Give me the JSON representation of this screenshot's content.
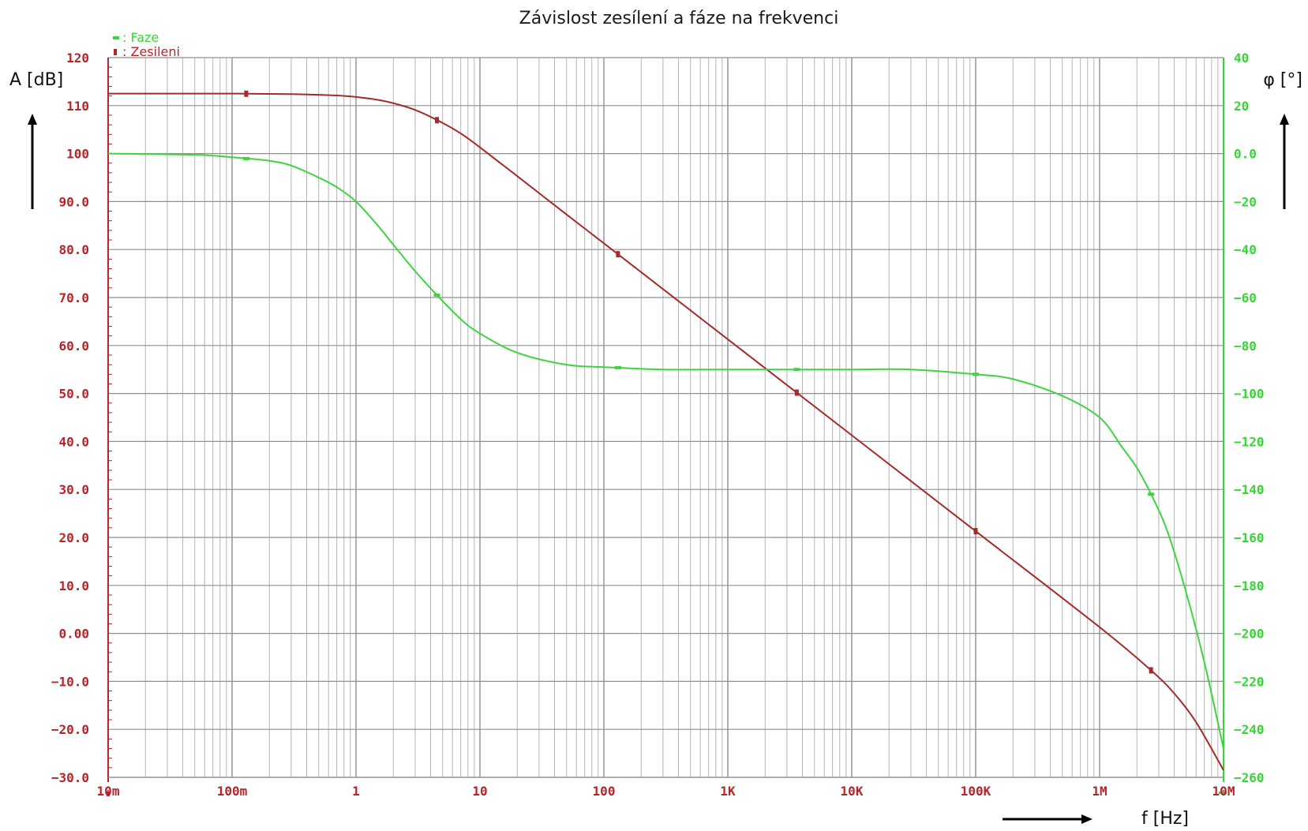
{
  "chart_data": {
    "type": "line",
    "title": "Závislost zesílení a fáze na frekvenci",
    "xlabel": "f [Hz]",
    "ylabel": "A [dB]",
    "y2label": "φ [°]",
    "x_scale": "log",
    "xlim": [
      0.01,
      10000000
    ],
    "ylim": [
      -30,
      120
    ],
    "y2lim": [
      -260,
      40
    ],
    "grid": true,
    "legend_position": "top-left",
    "x_ticks": [
      {
        "value": 0.01,
        "label": "10m"
      },
      {
        "value": 0.1,
        "label": "100m"
      },
      {
        "value": 1,
        "label": "1"
      },
      {
        "value": 10,
        "label": "10"
      },
      {
        "value": 100,
        "label": "100"
      },
      {
        "value": 1000,
        "label": "1K"
      },
      {
        "value": 10000,
        "label": "10K"
      },
      {
        "value": 100000,
        "label": "100K"
      },
      {
        "value": 1000000,
        "label": "1M"
      },
      {
        "value": 10000000,
        "label": "10M"
      }
    ],
    "y_ticks": [
      {
        "value": 120,
        "label": "120"
      },
      {
        "value": 110,
        "label": "110"
      },
      {
        "value": 100,
        "label": "100"
      },
      {
        "value": 90,
        "label": "90.0"
      },
      {
        "value": 80,
        "label": "80.0"
      },
      {
        "value": 70,
        "label": "70.0"
      },
      {
        "value": 60,
        "label": "60.0"
      },
      {
        "value": 50,
        "label": "50.0"
      },
      {
        "value": 40,
        "label": "40.0"
      },
      {
        "value": 30,
        "label": "30.0"
      },
      {
        "value": 20,
        "label": "20.0"
      },
      {
        "value": 10,
        "label": "10.0"
      },
      {
        "value": 0,
        "label": "0.00"
      },
      {
        "value": -10,
        "label": "-10.0"
      },
      {
        "value": -20,
        "label": "-20.0"
      },
      {
        "value": -30,
        "label": "-30.0"
      }
    ],
    "y2_ticks": [
      {
        "value": 40,
        "label": "40"
      },
      {
        "value": 20,
        "label": "20"
      },
      {
        "value": 0,
        "label": "0.0"
      },
      {
        "value": -20,
        "label": "-20"
      },
      {
        "value": -40,
        "label": "-40"
      },
      {
        "value": -60,
        "label": "-60"
      },
      {
        "value": -80,
        "label": "-80"
      },
      {
        "value": -100,
        "label": "-100"
      },
      {
        "value": -120,
        "label": "-120"
      },
      {
        "value": -140,
        "label": "-140"
      },
      {
        "value": -160,
        "label": "-160"
      },
      {
        "value": -180,
        "label": "-180"
      },
      {
        "value": -200,
        "label": "-200"
      },
      {
        "value": -220,
        "label": "-220"
      },
      {
        "value": -240,
        "label": "-240"
      },
      {
        "value": -260,
        "label": "-260"
      }
    ],
    "series": [
      {
        "name": "Zesileni",
        "axis": "left",
        "color": "#a52a2a",
        "marker_x": [
          0.13,
          4.5,
          130,
          3600,
          100000,
          2600000
        ],
        "x": [
          0.01,
          0.03,
          0.1,
          0.3,
          0.7,
          1,
          1.5,
          2,
          3,
          5,
          7,
          10,
          20,
          50,
          100,
          1000,
          10000,
          100000,
          1000000,
          2600000,
          4000000,
          6000000,
          10000000
        ],
        "values": [
          112.5,
          112.5,
          112.5,
          112.4,
          112.1,
          111.8,
          111.2,
          110.5,
          109.1,
          106.4,
          104.2,
          101.3,
          95.3,
          87.3,
          81.3,
          61.3,
          41.3,
          21.3,
          1.3,
          -7.7,
          -12.5,
          -18.5,
          -28.5
        ]
      },
      {
        "name": "Faze",
        "axis": "right",
        "color": "#3fd43f",
        "marker_x": [
          0.13,
          4.5,
          130,
          3600,
          100000,
          2600000
        ],
        "x": [
          0.01,
          0.05,
          0.1,
          0.2,
          0.3,
          0.5,
          0.7,
          1,
          1.5,
          2,
          3,
          4.5,
          7,
          10,
          20,
          50,
          100,
          300,
          1000,
          10000,
          30000,
          100000,
          200000,
          500000,
          1000000,
          1500000,
          2000000,
          2600000,
          3500000,
          5000000,
          7000000,
          10000000
        ],
        "values": [
          0,
          -0.5,
          -1.5,
          -3,
          -5,
          -10,
          -14,
          -20,
          -30,
          -38,
          -49,
          -59,
          -69,
          -75,
          -83,
          -88,
          -89,
          -90,
          -90,
          -90,
          -90,
          -92,
          -94,
          -101,
          -110,
          -122,
          -131,
          -142,
          -157,
          -183,
          -212,
          -248
        ]
      }
    ]
  }
}
